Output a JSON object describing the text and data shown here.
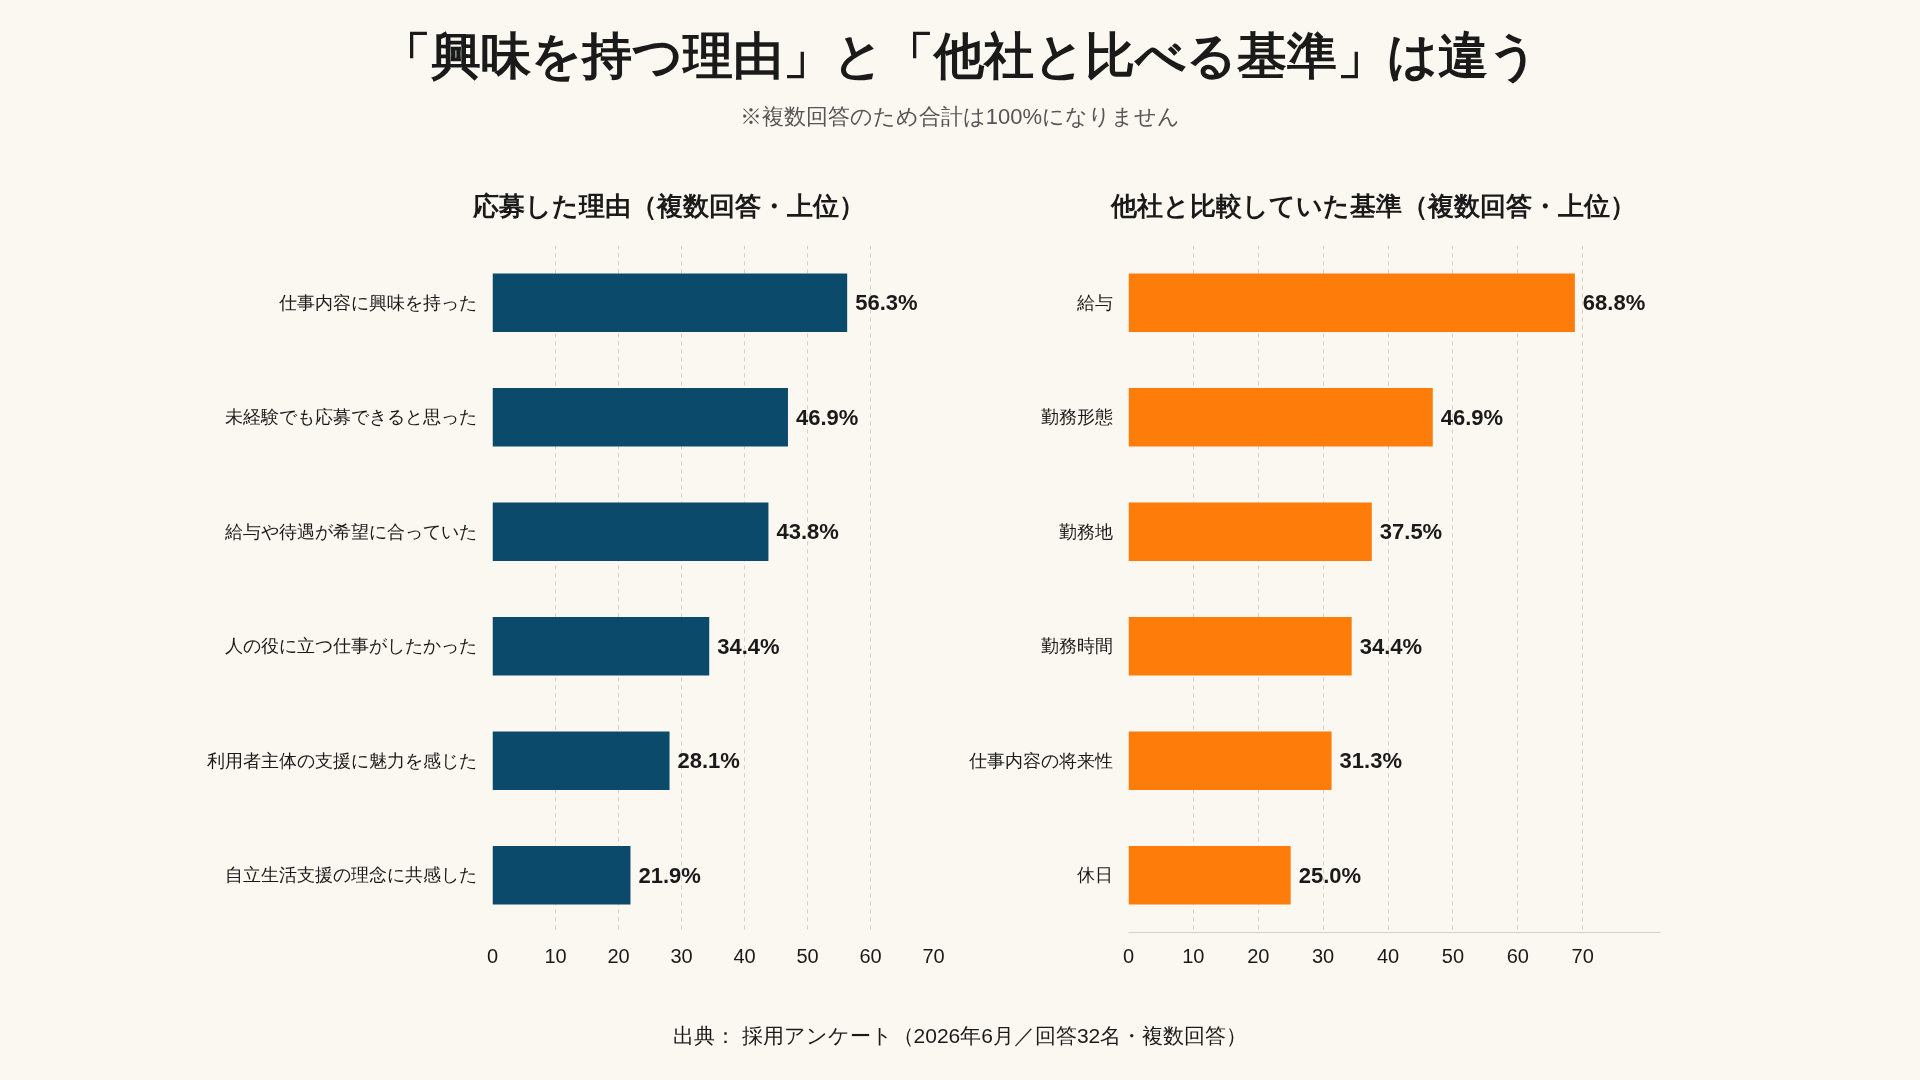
{
  "chart_data": [
    {
      "type": "other",
      "title": "「興味を持つ理由」と「他社と比べる基準」は違う",
      "subtitle": "※複数回答のため合計は100%になりません",
      "annotations": [
        "出典： 採用アンケート（2026年6月／回答32名・複数回答）"
      ]
    },
    {
      "type": "bar",
      "orientation": "horizontal",
      "title": "応募した理由（複数回答・上位）",
      "categories": [
        "仕事内容に興味を持った",
        "未経験でも応募できると思った",
        "給与や待遇が希望に合っていた",
        "人の役に立つ仕事がしたかった",
        "利用者主体の支援に魅力を感じた",
        "自立生活支援の理念に共感した"
      ],
      "values": [
        56.3,
        46.9,
        43.8,
        34.4,
        28.1,
        21.9
      ],
      "value_labels": [
        "56.3%",
        "46.9%",
        "43.8%",
        "34.4%",
        "28.1%",
        "21.9%"
      ],
      "color": "#0b4a6b",
      "xlim": [
        0,
        70
      ],
      "xticks": [
        0,
        10,
        20,
        30,
        40,
        50,
        60,
        70
      ],
      "grid": "x"
    },
    {
      "type": "bar",
      "orientation": "horizontal",
      "title": "他社と比較していた基準（複数回答・上位）",
      "categories": [
        "給与",
        "勤務形態",
        "勤務地",
        "勤務時間",
        "仕事内容の将来性",
        "休日"
      ],
      "values": [
        68.8,
        46.9,
        37.5,
        34.4,
        31.3,
        25.0
      ],
      "value_labels": [
        "68.8%",
        "46.9%",
        "37.5%",
        "34.4%",
        "31.3%",
        "25.0%"
      ],
      "color": "#fe7c0a",
      "xlim": [
        0,
        82
      ],
      "xticks": [
        0,
        10,
        20,
        30,
        40,
        50,
        60,
        70
      ],
      "grid": "x"
    }
  ]
}
